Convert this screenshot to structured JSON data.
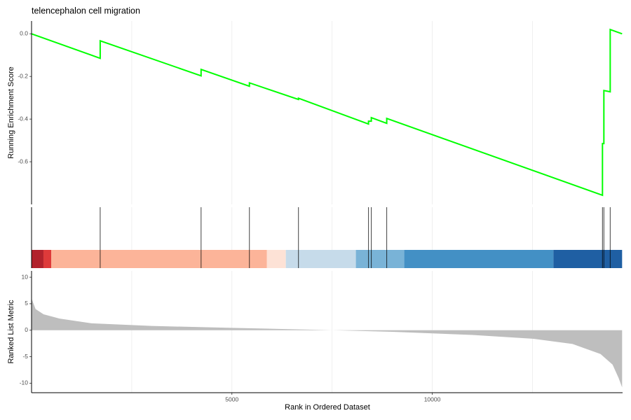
{
  "chart_data": [
    {
      "type": "line",
      "title": "telencephalon cell migration",
      "ylabel": "Running Enrichment Score",
      "x": [
        0,
        1713,
        1713,
        4231,
        4231,
        5437,
        5437,
        6661,
        6661,
        8409,
        8409,
        8479,
        8479,
        8864,
        8864,
        14248,
        14248,
        14283,
        14283,
        14441,
        14441,
        14738
      ],
      "values": [
        0,
        -0.115,
        -0.033,
        -0.197,
        -0.167,
        -0.246,
        -0.23,
        -0.308,
        -0.302,
        -0.423,
        -0.41,
        -0.41,
        -0.393,
        -0.42,
        -0.397,
        -0.757,
        -0.515,
        -0.515,
        -0.266,
        -0.272,
        0.02,
        0.0
      ],
      "color": "#00ff00",
      "xlim": [
        0,
        14750
      ],
      "ylim": [
        -0.8,
        0.06
      ],
      "yticks": [
        {
          "value": 0,
          "label": "0.0"
        },
        -0.2,
        -0.4,
        -0.6
      ],
      "xgrid": [
        2500,
        5000,
        7500,
        10000,
        12500
      ]
    },
    {
      "type": "rug",
      "x": [
        1713,
        4231,
        5437,
        6661,
        8409,
        8479,
        8864,
        14248,
        14283,
        14441
      ],
      "color": "#000000",
      "xlim": [
        0,
        14750
      ],
      "bands": [
        {
          "start": 0,
          "end": 297,
          "color": "#b2222c"
        },
        {
          "start": 297,
          "end": 490,
          "color": "#de3a3a"
        },
        {
          "start": 490,
          "end": 5874,
          "color": "#fcb499"
        },
        {
          "start": 5874,
          "end": 6346,
          "color": "#fde2d6"
        },
        {
          "start": 6346,
          "end": 8094,
          "color": "#c6dbea"
        },
        {
          "start": 8094,
          "end": 9301,
          "color": "#79b3d7"
        },
        {
          "start": 9301,
          "end": 13024,
          "color": "#4390c5"
        },
        {
          "start": 13024,
          "end": 14738,
          "color": "#1f5fa3"
        }
      ],
      "xgrid": [
        2500,
        5000,
        7500,
        10000,
        12500
      ]
    },
    {
      "type": "area",
      "ylabel": "Ranked List Metric",
      "xlabel": "Rank in Ordered Dataset",
      "x": [
        0,
        100,
        300,
        700,
        1500,
        3000,
        5000,
        7000,
        7500,
        9000,
        11000,
        12500,
        13500,
        14200,
        14500,
        14650,
        14738
      ],
      "values": [
        6,
        4,
        3,
        2.2,
        1.3,
        0.8,
        0.45,
        0.1,
        0,
        -0.3,
        -0.9,
        -1.6,
        -2.6,
        -4.5,
        -6.5,
        -9,
        -10.8
      ],
      "color": "#bebebe",
      "xlim": [
        0,
        14750
      ],
      "ylim": [
        -11.8,
        11.2
      ],
      "yticks": [
        10,
        5,
        0,
        -5,
        -10
      ],
      "xticks": [
        5000,
        10000
      ],
      "xgrid": [
        2500,
        5000,
        7500,
        10000,
        12500
      ]
    }
  ]
}
